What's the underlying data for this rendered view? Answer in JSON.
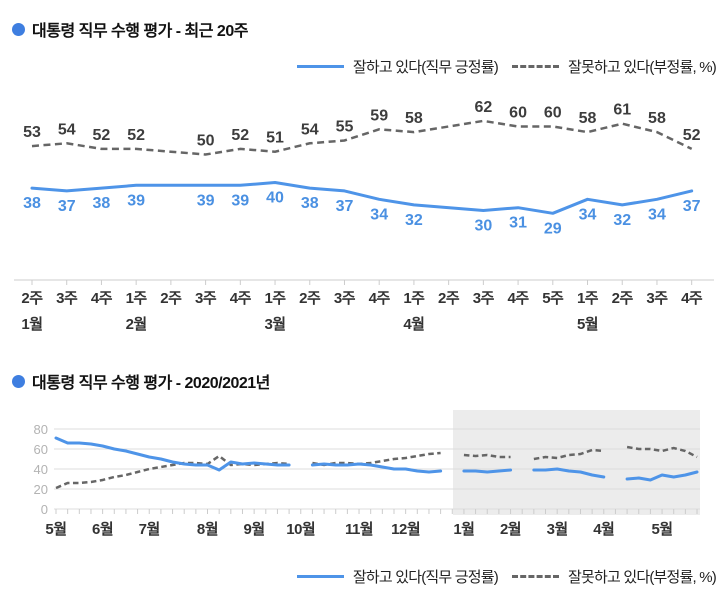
{
  "colors": {
    "title_bullet": "#3e7ee0",
    "positive_line": "#4e94e8",
    "positive_label": "#4a90e2",
    "negative_line": "#666666",
    "negative_label": "#3d3d3d",
    "axis": "#cccccc",
    "grid": "#dddddd",
    "ytick_label": "#b3b3b3",
    "highlight_bg": "#ececec"
  },
  "chart_data": [
    {
      "type": "line",
      "title": "대통령 직무 수행 평가 - 최근 20주",
      "legend_position": "top-right",
      "data_labels": true,
      "connect_gaps": true,
      "x_weeks": [
        "2주",
        "3주",
        "4주",
        "1주",
        "2주",
        "3주",
        "4주",
        "1주",
        "2주",
        "3주",
        "4주",
        "1주",
        "2주",
        "3주",
        "4주",
        "5주",
        "1주",
        "2주",
        "3주",
        "4주"
      ],
      "x_months": [
        {
          "label": "1월",
          "week_index": 0
        },
        {
          "label": "2월",
          "week_index": 3
        },
        {
          "label": "3월",
          "week_index": 7
        },
        {
          "label": "4월",
          "week_index": 11
        },
        {
          "label": "5월",
          "week_index": 16
        }
      ],
      "series": [
        {
          "name": "잘하고 있다(직무 긍정률)",
          "style": "solid-blue",
          "values": [
            38,
            37,
            38,
            39,
            null,
            39,
            39,
            40,
            38,
            37,
            34,
            32,
            null,
            30,
            31,
            29,
            34,
            32,
            34,
            37
          ]
        },
        {
          "name": "잘못하고 있다(부정률, %)",
          "style": "dashed-gray",
          "values": [
            53,
            54,
            52,
            52,
            null,
            50,
            52,
            51,
            54,
            55,
            59,
            58,
            null,
            62,
            60,
            60,
            58,
            61,
            58,
            52
          ]
        }
      ]
    },
    {
      "type": "line",
      "title": "대통령 직무 수행 평가 - 2020/2021년",
      "legend_position": "bottom-right",
      "data_labels": false,
      "connect_gaps": false,
      "ylim": [
        0,
        80
      ],
      "yticks": [
        0,
        20,
        40,
        60,
        80
      ],
      "total_weeks": 56,
      "highlight_region": {
        "start_week_index": 34,
        "end_week_index": 55
      },
      "x_months": [
        {
          "label": "5월",
          "week_index": 0
        },
        {
          "label": "6월",
          "week_index": 4
        },
        {
          "label": "7월",
          "week_index": 8
        },
        {
          "label": "8월",
          "week_index": 13
        },
        {
          "label": "9월",
          "week_index": 17
        },
        {
          "label": "10월",
          "week_index": 21
        },
        {
          "label": "11월",
          "week_index": 26
        },
        {
          "label": "12월",
          "week_index": 30
        },
        {
          "label": "1월",
          "week_index": 35
        },
        {
          "label": "2월",
          "week_index": 39
        },
        {
          "label": "3월",
          "week_index": 43
        },
        {
          "label": "4월",
          "week_index": 47
        },
        {
          "label": "5월",
          "week_index": 52
        }
      ],
      "series": [
        {
          "name": "잘하고 있다(직무 긍정률)",
          "style": "solid-blue",
          "values": [
            71,
            66,
            66,
            65,
            63,
            60,
            58,
            55,
            52,
            50,
            47,
            45,
            44,
            44,
            39,
            47,
            45,
            46,
            45,
            44,
            44,
            null,
            44,
            45,
            44,
            44,
            45,
            44,
            42,
            40,
            40,
            38,
            37,
            38,
            null,
            38,
            38,
            37,
            38,
            39,
            null,
            39,
            39,
            40,
            38,
            37,
            34,
            32,
            null,
            30,
            31,
            29,
            34,
            32,
            34,
            37
          ]
        },
        {
          "name": "잘못하고 있다(부정률, %)",
          "style": "dashed-gray",
          "values": [
            21,
            26,
            26,
            27,
            29,
            32,
            34,
            37,
            40,
            42,
            44,
            46,
            46,
            45,
            53,
            44,
            45,
            44,
            45,
            46,
            45,
            null,
            46,
            44,
            46,
            46,
            45,
            46,
            48,
            50,
            51,
            53,
            55,
            56,
            null,
            54,
            53,
            54,
            52,
            52,
            null,
            50,
            52,
            51,
            54,
            55,
            59,
            58,
            null,
            62,
            60,
            60,
            58,
            61,
            58,
            52
          ]
        }
      ]
    }
  ]
}
